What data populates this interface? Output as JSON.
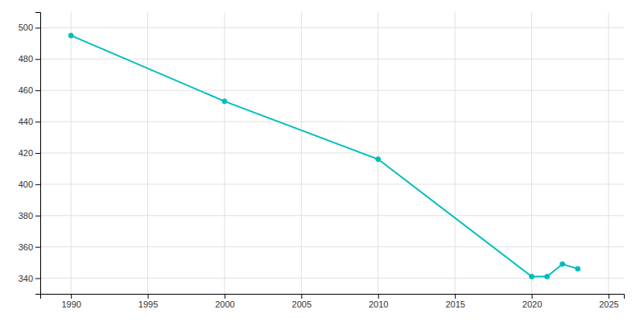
{
  "chart_data": {
    "type": "line",
    "x": [
      1990,
      2000,
      2010,
      2020,
      2021,
      2022,
      2023
    ],
    "values": [
      495,
      453,
      416,
      341,
      341,
      349,
      346
    ],
    "color": "#00BEBE",
    "marker": "circle",
    "xlim": [
      1988,
      2026
    ],
    "ylim": [
      330,
      510
    ],
    "xticks": [
      1990,
      1995,
      2000,
      2005,
      2010,
      2015,
      2020,
      2025
    ],
    "yticks": [
      340,
      360,
      380,
      400,
      420,
      440,
      460,
      480,
      500
    ],
    "grid": true
  }
}
